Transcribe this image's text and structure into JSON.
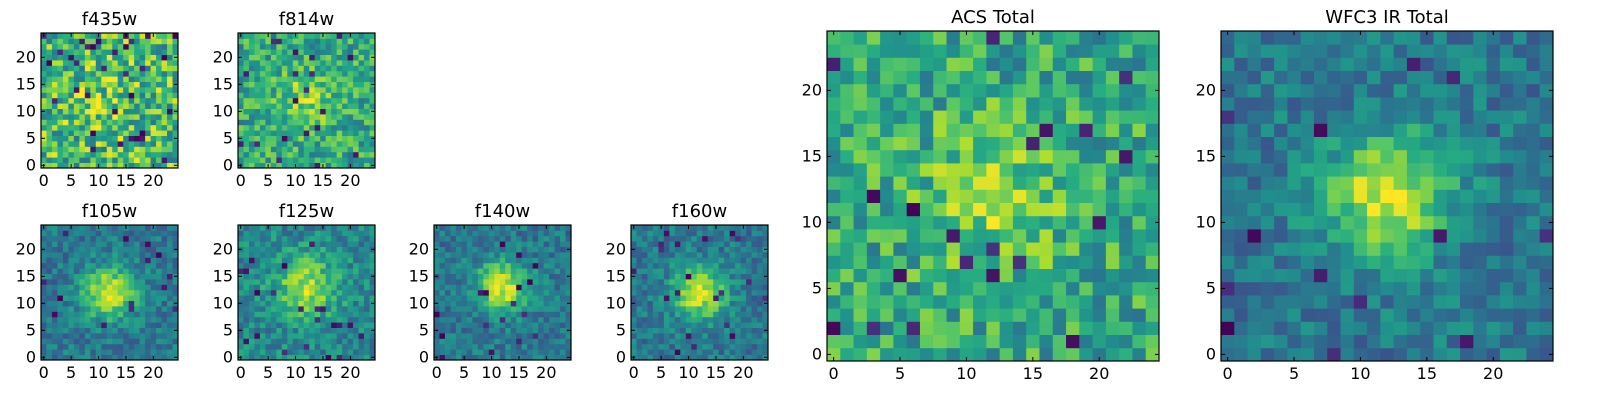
{
  "figure": {
    "background": "#ffffff",
    "colormap": "viridis"
  },
  "chart_data": [
    {
      "id": "p1",
      "type": "heatmap",
      "title": "f435w",
      "grid_size": 25,
      "xticks": [
        0,
        5,
        10,
        15,
        20
      ],
      "yticks": [
        0,
        5,
        10,
        15,
        20
      ],
      "xlim": [
        0,
        24
      ],
      "ylim": [
        0,
        24
      ],
      "source_center": [
        12,
        12
      ],
      "signal_to_noise": "very low"
    },
    {
      "id": "p2",
      "type": "heatmap",
      "title": "f814w",
      "grid_size": 25,
      "xticks": [
        0,
        5,
        10,
        15,
        20
      ],
      "yticks": [
        0,
        5,
        10,
        15,
        20
      ],
      "xlim": [
        0,
        24
      ],
      "ylim": [
        0,
        24
      ],
      "source_center": [
        12,
        12
      ],
      "signal_to_noise": "low"
    },
    {
      "id": "p3",
      "type": "heatmap",
      "title": "f105w",
      "grid_size": 25,
      "xticks": [
        0,
        5,
        10,
        15,
        20
      ],
      "yticks": [
        0,
        5,
        10,
        15,
        20
      ],
      "xlim": [
        0,
        24
      ],
      "ylim": [
        0,
        24
      ],
      "source_center": [
        12,
        12
      ],
      "signal_to_noise": "high"
    },
    {
      "id": "p4",
      "type": "heatmap",
      "title": "f125w",
      "grid_size": 25,
      "xticks": [
        0,
        5,
        10,
        15,
        20
      ],
      "yticks": [
        0,
        5,
        10,
        15,
        20
      ],
      "xlim": [
        0,
        24
      ],
      "ylim": [
        0,
        24
      ],
      "source_center": [
        12,
        13
      ],
      "signal_to_noise": "medium"
    },
    {
      "id": "p5",
      "type": "heatmap",
      "title": "f140w",
      "grid_size": 25,
      "xticks": [
        0,
        5,
        10,
        15,
        20
      ],
      "yticks": [
        0,
        5,
        10,
        15,
        20
      ],
      "xlim": [
        0,
        24
      ],
      "ylim": [
        0,
        24
      ],
      "source_center": [
        12,
        13
      ],
      "signal_to_noise": "high"
    },
    {
      "id": "p6",
      "type": "heatmap",
      "title": "f160w",
      "grid_size": 25,
      "xticks": [
        0,
        5,
        10,
        15,
        20
      ],
      "yticks": [
        0,
        5,
        10,
        15,
        20
      ],
      "xlim": [
        0,
        24
      ],
      "ylim": [
        0,
        24
      ],
      "source_center": [
        12,
        12
      ],
      "signal_to_noise": "high"
    },
    {
      "id": "p7",
      "type": "heatmap",
      "title": "ACS Total",
      "grid_size": 25,
      "xticks": [
        0,
        5,
        10,
        15,
        20
      ],
      "yticks": [
        0,
        5,
        10,
        15,
        20
      ],
      "xlim": [
        0,
        24
      ],
      "ylim": [
        0,
        24
      ],
      "source_center": [
        12,
        12
      ],
      "signal_to_noise": "low"
    },
    {
      "id": "p8",
      "type": "heatmap",
      "title": "WFC3 IR Total",
      "grid_size": 25,
      "xticks": [
        0,
        5,
        10,
        15,
        20
      ],
      "yticks": [
        0,
        5,
        10,
        15,
        20
      ],
      "xlim": [
        0,
        24
      ],
      "ylim": [
        0,
        24
      ],
      "source_center": [
        12,
        12
      ],
      "signal_to_noise": "high"
    }
  ]
}
